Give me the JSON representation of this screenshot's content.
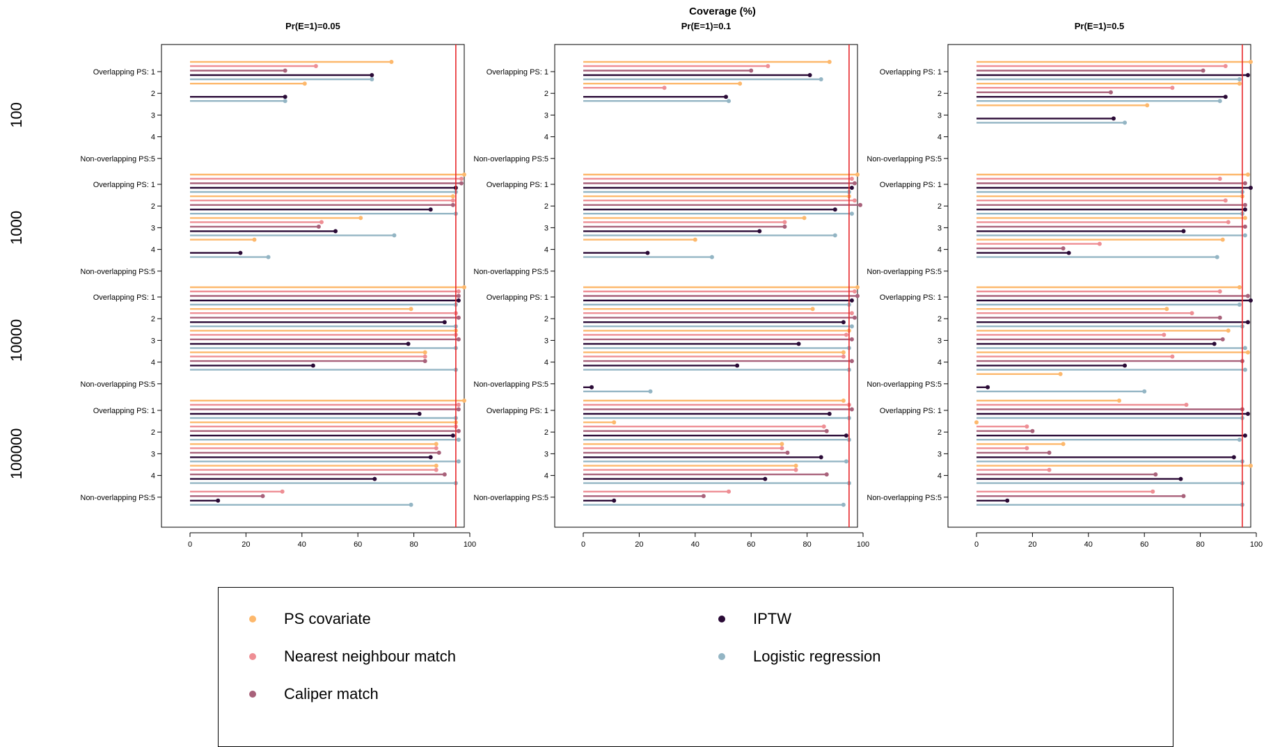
{
  "chart_data": {
    "type": "lollipop",
    "title": "Coverage (%)",
    "reference_line": 95,
    "reference_color": "#E8262A",
    "xlim": [
      0,
      100
    ],
    "xticks": [
      0,
      20,
      40,
      60,
      80,
      100
    ],
    "row_groups": [
      "100",
      "1000",
      "10000",
      "100000"
    ],
    "scenario_labels": [
      "Overlapping PS: 1",
      "2",
      "3",
      "4",
      "Non-overlapping PS:5"
    ],
    "series": [
      {
        "name": "PS covariate",
        "color": "#FDB86C"
      },
      {
        "name": "Nearest neighbour match",
        "color": "#EE8E94"
      },
      {
        "name": "Caliper match",
        "color": "#A8617A"
      },
      {
        "name": "IPTW",
        "color": "#2A0A36"
      },
      {
        "name": "Logistic regression",
        "color": "#93B5C4"
      }
    ],
    "panels": [
      {
        "title": "Pr(E=1)=0.05",
        "groups": [
          [
            [
              72,
              45,
              34,
              65,
              65
            ],
            [
              41,
              null,
              null,
              34,
              34
            ],
            [
              null,
              null,
              null,
              null,
              null
            ],
            [
              null,
              null,
              null,
              null,
              null
            ],
            [
              null,
              null,
              null,
              null,
              null
            ]
          ],
          [
            [
              98,
              97,
              97,
              95,
              95
            ],
            [
              94,
              94,
              94,
              86,
              95
            ],
            [
              61,
              47,
              46,
              52,
              73
            ],
            [
              23,
              null,
              null,
              18,
              28
            ],
            [
              null,
              null,
              null,
              null,
              null
            ]
          ],
          [
            [
              98,
              96,
              96,
              96,
              95
            ],
            [
              79,
              95,
              96,
              91,
              95
            ],
            [
              95,
              95,
              96,
              78,
              95
            ],
            [
              84,
              84,
              84,
              44,
              95
            ],
            [
              null,
              null,
              null,
              null,
              null
            ]
          ],
          [
            [
              98,
              96,
              96,
              82,
              95
            ],
            [
              95,
              95,
              96,
              94,
              96
            ],
            [
              88,
              88,
              89,
              86,
              96
            ],
            [
              88,
              88,
              91,
              66,
              95
            ],
            [
              null,
              33,
              26,
              10,
              79
            ]
          ]
        ]
      },
      {
        "title": "Pr(E=1)=0.1",
        "groups": [
          [
            [
              88,
              66,
              60,
              81,
              85
            ],
            [
              56,
              29,
              null,
              51,
              52
            ],
            [
              null,
              null,
              null,
              null,
              null
            ],
            [
              null,
              null,
              null,
              null,
              null
            ],
            [
              null,
              null,
              null,
              null,
              null
            ]
          ],
          [
            [
              98,
              96,
              97,
              96,
              95
            ],
            [
              95,
              97,
              99,
              90,
              96
            ],
            [
              79,
              72,
              72,
              63,
              90
            ],
            [
              40,
              null,
              null,
              23,
              46
            ],
            [
              null,
              null,
              null,
              null,
              null
            ]
          ],
          [
            [
              98,
              97,
              98,
              96,
              95
            ],
            [
              82,
              96,
              97,
              93,
              96
            ],
            [
              95,
              94,
              96,
              77,
              95
            ],
            [
              93,
              93,
              96,
              55,
              95
            ],
            [
              null,
              null,
              null,
              3,
              24
            ]
          ],
          [
            [
              93,
              95,
              96,
              88,
              95
            ],
            [
              11,
              86,
              87,
              94,
              95
            ],
            [
              71,
              71,
              73,
              85,
              94
            ],
            [
              76,
              76,
              87,
              65,
              95
            ],
            [
              null,
              52,
              43,
              11,
              93
            ]
          ]
        ]
      },
      {
        "title": "Pr(E=1)=0.5",
        "groups": [
          [
            [
              98,
              89,
              81,
              97,
              94
            ],
            [
              94,
              70,
              48,
              89,
              87
            ],
            [
              61,
              null,
              null,
              49,
              53
            ],
            [
              null,
              null,
              null,
              null,
              null
            ],
            [
              null,
              null,
              null,
              null,
              null
            ]
          ],
          [
            [
              97,
              87,
              96,
              98,
              95
            ],
            [
              95,
              89,
              96,
              96,
              95
            ],
            [
              96,
              90,
              96,
              74,
              96
            ],
            [
              88,
              44,
              31,
              33,
              86
            ],
            [
              null,
              null,
              null,
              null,
              null
            ]
          ],
          [
            [
              94,
              87,
              97,
              98,
              94
            ],
            [
              68,
              77,
              87,
              97,
              95
            ],
            [
              90,
              67,
              88,
              85,
              96
            ],
            [
              97,
              70,
              95,
              53,
              96
            ],
            [
              30,
              null,
              null,
              4,
              60
            ]
          ],
          [
            [
              51,
              75,
              95,
              97,
              95
            ],
            [
              0,
              18,
              20,
              96,
              94
            ],
            [
              31,
              18,
              26,
              92,
              95
            ],
            [
              98,
              26,
              64,
              73,
              95
            ],
            [
              null,
              63,
              74,
              11,
              95
            ]
          ]
        ]
      }
    ]
  }
}
